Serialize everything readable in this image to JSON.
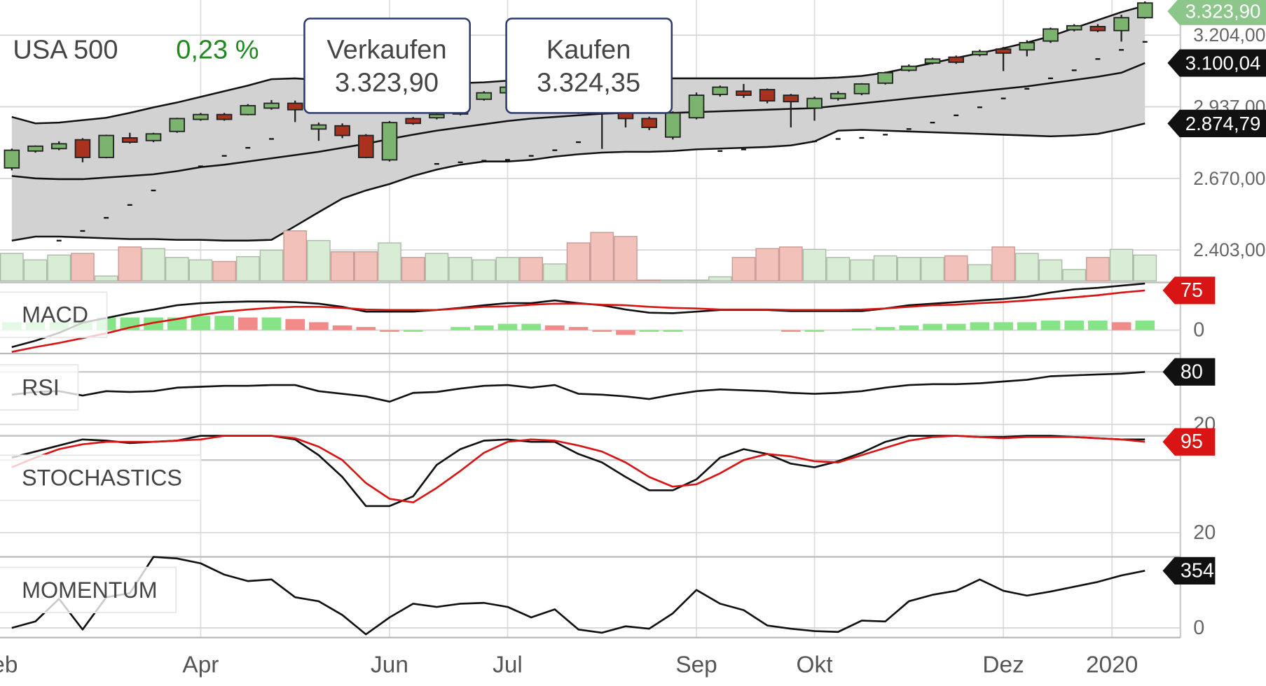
{
  "header": {
    "instrument": "USA 500",
    "change": "0,23 %",
    "sell_label": "Verkaufen",
    "sell_price": "3.323,90",
    "buy_label": "Kaufen",
    "buy_price": "3.324,35"
  },
  "chart_data": [
    {
      "type": "candlestick",
      "categories": [
        null,
        null,
        null,
        null,
        null,
        null,
        null,
        null,
        null,
        null,
        null,
        null,
        null,
        null,
        null,
        null,
        null,
        null,
        null,
        null,
        null,
        null,
        null,
        null,
        null,
        null,
        null,
        null,
        null,
        null,
        null,
        null,
        null,
        null,
        null,
        null,
        null,
        null,
        null,
        null,
        null,
        null,
        null,
        null,
        null,
        null,
        null,
        null,
        null
      ],
      "xlim": [
        -0.5,
        49.5
      ],
      "xticks": [
        {
          "value": -0.6,
          "label": "Feb"
        },
        {
          "value": 8,
          "label": "Apr"
        },
        {
          "value": 16,
          "label": "Jun"
        },
        {
          "value": 21,
          "label": "Jul"
        },
        {
          "value": 29,
          "label": "Sep"
        },
        {
          "value": 34,
          "label": "Okt"
        },
        {
          "value": 42,
          "label": "Dez"
        },
        {
          "value": 46.6,
          "label": "2020"
        }
      ],
      "ylim": [
        2282,
        3335
      ],
      "yticks": [
        {
          "value": 3204,
          "label": "3.204,00"
        },
        {
          "value": 2937,
          "label": "2.937,00"
        },
        {
          "value": 2670,
          "label": "2.670,00"
        },
        {
          "value": 2403,
          "label": "2.403,00"
        }
      ],
      "grid": true,
      "up_color": "#7cb46f",
      "down_color": "#a8321e",
      "open": [
        2709,
        2772,
        2781,
        2814,
        2748,
        2821,
        2811,
        2845,
        2890,
        2908,
        2908,
        2932,
        2950,
        2854,
        2866,
        2830,
        2739,
        2893,
        2896,
        2910,
        2965,
        2989,
        3015,
        3010,
        2990,
        2935,
        2914,
        2893,
        2824,
        2896,
        2983,
        2995,
        3001,
        2980,
        2932,
        2968,
        2986,
        3025,
        3073,
        3100,
        3122,
        3131,
        3152,
        3149,
        3182,
        3224,
        3236,
        3221,
        3269
      ],
      "high": [
        2781,
        2793,
        2808,
        2820,
        2833,
        2840,
        2840,
        2896,
        2914,
        2914,
        2947,
        2962,
        2960,
        2878,
        2875,
        2835,
        2884,
        2899,
        2914,
        2960,
        2995,
        3020,
        3025,
        3025,
        2995,
        2945,
        2920,
        2900,
        2920,
        2990,
        3016,
        3022,
        3005,
        2985,
        2975,
        2995,
        3025,
        3068,
        3095,
        3120,
        3128,
        3150,
        3160,
        3185,
        3232,
        3245,
        3245,
        3280,
        3330
      ],
      "low": [
        2700,
        2766,
        2775,
        2730,
        2745,
        2800,
        2805,
        2840,
        2885,
        2885,
        2905,
        2926,
        2880,
        2810,
        2820,
        2745,
        2733,
        2870,
        2890,
        2905,
        2960,
        2985,
        2995,
        2985,
        2910,
        2780,
        2860,
        2850,
        2815,
        2890,
        2975,
        2970,
        2950,
        2860,
        2885,
        2960,
        2980,
        3020,
        3068,
        3095,
        3097,
        3125,
        3070,
        3125,
        3175,
        3218,
        3215,
        3180,
        3265
      ],
      "close": [
        2775,
        2790,
        2799,
        2748,
        2830,
        2805,
        2836,
        2893,
        2908,
        2890,
        2941,
        2950,
        2926,
        2869,
        2830,
        2748,
        2878,
        2875,
        2908,
        2950,
        2989,
        3010,
        3010,
        3020,
        2920,
        2920,
        2893,
        2860,
        2914,
        2980,
        3010,
        2980,
        2959,
        2956,
        2968,
        2986,
        3022,
        3064,
        3088,
        3115,
        3103,
        3143,
        3137,
        3176,
        3227,
        3239,
        3221,
        3269,
        3323.9
      ],
      "bands": {
        "color": "#111111",
        "fill": "#d2d2d2",
        "upper": [
          2899,
          2875,
          2878,
          2887,
          2896,
          2914,
          2935,
          2953,
          2974,
          2995,
          3016,
          3040,
          3043,
          3037,
          3034,
          3031,
          3028,
          3025,
          3025,
          3025,
          3028,
          3034,
          3034,
          3040,
          3043,
          3046,
          3046,
          3043,
          3043,
          3043,
          3043,
          3043,
          3043,
          3043,
          3043,
          3046,
          3052,
          3064,
          3082,
          3100,
          3119,
          3137,
          3155,
          3176,
          3200,
          3230,
          3260,
          3290,
          3314
        ],
        "middle": [
          2679,
          2670,
          2667,
          2667,
          2673,
          2679,
          2685,
          2697,
          2712,
          2721,
          2733,
          2745,
          2757,
          2769,
          2784,
          2799,
          2817,
          2833,
          2848,
          2860,
          2872,
          2884,
          2893,
          2899,
          2905,
          2911,
          2914,
          2914,
          2914,
          2917,
          2920,
          2923,
          2926,
          2929,
          2932,
          2941,
          2950,
          2959,
          2968,
          2977,
          2986,
          2995,
          3004,
          3013,
          3025,
          3037,
          3049,
          3064,
          3100.04
        ],
        "lower": [
          2438,
          2453,
          2453,
          2450,
          2447,
          2444,
          2444,
          2441,
          2441,
          2438,
          2438,
          2441,
          2492,
          2544,
          2595,
          2625,
          2649,
          2679,
          2703,
          2721,
          2733,
          2733,
          2739,
          2751,
          2760,
          2766,
          2769,
          2769,
          2772,
          2778,
          2781,
          2784,
          2787,
          2793,
          2808,
          2848,
          2851,
          2848,
          2845,
          2842,
          2839,
          2836,
          2833,
          2830,
          2827,
          2830,
          2836,
          2854,
          2874.79
        ]
      },
      "sar": {
        "color": "#111111",
        "values": [
          null,
          null,
          2438,
          2474,
          2523,
          2571,
          2625,
          null,
          2715,
          2754,
          2784,
          2817,
          null,
          null,
          null,
          null,
          null,
          null,
          2724,
          2730,
          2736,
          2739,
          2754,
          2775,
          2805,
          null,
          null,
          null,
          null,
          null,
          2772,
          2778,
          null,
          null,
          2808,
          2817,
          2821,
          2833,
          2854,
          2878,
          2905,
          2935,
          2968,
          3004,
          3043,
          3073,
          3115,
          3149,
          3179
        ]
      },
      "volume": {
        "ylim": [
          0,
          130
        ],
        "up_color": "#d9ecd6",
        "down_color": "#f2c1ba",
        "values": [
          34,
          26,
          32,
          34,
          6,
          42,
          40,
          29,
          26,
          24,
          30,
          38,
          62,
          50,
          36,
          36,
          47,
          29,
          34,
          29,
          26,
          29,
          29,
          21,
          47,
          60,
          55,
          1,
          1,
          1,
          5,
          29,
          40,
          42,
          39,
          29,
          26,
          31,
          29,
          29,
          31,
          20,
          42,
          34,
          26,
          14,
          29,
          39,
          32
        ]
      },
      "badges": [
        {
          "value": 3323.9,
          "label": "3.323,90",
          "color": "#8cc68a"
        },
        {
          "value": 3100.04,
          "label": "3.100,04",
          "color": "#111111"
        },
        {
          "value": 2874.79,
          "label": "2.874,79",
          "color": "#111111"
        }
      ]
    },
    {
      "type": "line",
      "title": "MACD",
      "ylim": [
        -44,
        90
      ],
      "yticks": [
        0
      ],
      "series": [
        {
          "color": "#111111",
          "values": [
            -32,
            -20,
            -5,
            14,
            23,
            32,
            39,
            47,
            51,
            53,
            54,
            54,
            53,
            50,
            44,
            35,
            35,
            35,
            38,
            42,
            47,
            51,
            51,
            56,
            51,
            47,
            39,
            33,
            32,
            35,
            38,
            38,
            38,
            36,
            36,
            36,
            36,
            41,
            47,
            50,
            53,
            56,
            59,
            63,
            71,
            77,
            80,
            84,
            88
          ]
        },
        {
          "color": "#d81414",
          "badge": true,
          "values": [
            -41,
            -32,
            -24,
            -15,
            -6,
            5,
            14,
            21,
            29,
            35,
            39,
            42,
            44,
            44,
            42,
            39,
            38,
            38,
            38,
            41,
            44,
            45,
            48,
            50,
            50,
            48,
            47,
            44,
            42,
            41,
            39,
            39,
            39,
            38,
            38,
            38,
            39,
            41,
            44,
            47,
            48,
            51,
            53,
            56,
            59,
            62,
            66,
            71,
            75
          ]
        }
      ],
      "histogram": {
        "up_color": "#86e486",
        "down_color": "#f28a8a",
        "values": [
          15,
          15,
          15,
          15,
          24,
          24,
          24,
          24,
          27,
          27,
          24,
          24,
          21,
          15,
          9,
          6,
          -3,
          -3,
          0,
          6,
          9,
          12,
          12,
          9,
          6,
          -3,
          -9,
          -3,
          -3,
          0,
          0,
          0,
          0,
          -3,
          -3,
          0,
          3,
          6,
          9,
          12,
          12,
          15,
          15,
          15,
          18,
          18,
          18,
          15,
          18
        ]
      }
    },
    {
      "type": "line",
      "title": "RSI",
      "ylim": [
        7,
        101
      ],
      "yticks": [
        20
      ],
      "hlines": [
        80
      ],
      "series": [
        {
          "color": "#111111",
          "badge": true,
          "values": [
            54,
            57,
            58,
            53,
            58,
            57,
            58,
            62,
            63,
            64,
            64,
            65,
            65,
            58,
            55,
            52,
            46,
            56,
            57,
            61,
            64,
            65,
            62,
            65,
            55,
            54,
            52,
            49,
            54,
            58,
            60,
            59,
            58,
            56,
            55,
            56,
            58,
            62,
            65,
            66,
            66,
            67,
            69,
            71,
            75,
            76,
            77,
            78,
            80
          ]
        }
      ]
    },
    {
      "type": "line",
      "title": "STOCHASTICS",
      "ylim": [
        0,
        100
      ],
      "yticks": [
        20
      ],
      "hlines": [
        80,
        100
      ],
      "series": [
        {
          "color": "#111111",
          "values": [
            82,
            87,
            92,
            97,
            96,
            94,
            95,
            96,
            100,
            100,
            100,
            100,
            97,
            84,
            66,
            42,
            42,
            50,
            76,
            89,
            96,
            97,
            95,
            95,
            85,
            78,
            66,
            55,
            55,
            64,
            82,
            89,
            85,
            77,
            74,
            79,
            86,
            95,
            100,
            100,
            100,
            99,
            99,
            100,
            100,
            99,
            98,
            97,
            97
          ]
        },
        {
          "color": "#d81414",
          "badge": true,
          "values": [
            74,
            82,
            89,
            93,
            95,
            95,
            95,
            96,
            97,
            100,
            100,
            100,
            98,
            91,
            80,
            61,
            48,
            45,
            57,
            71,
            86,
            95,
            97,
            96,
            92,
            87,
            78,
            66,
            58,
            60,
            69,
            80,
            85,
            83,
            79,
            78,
            84,
            90,
            96,
            99,
            100,
            99,
            98,
            99,
            99,
            99,
            98,
            97,
            95
          ]
        }
      ]
    },
    {
      "type": "line",
      "title": "MOMENTUM",
      "ylim": [
        -60,
        440
      ],
      "yticks": [
        0
      ],
      "series": [
        {
          "color": "#111111",
          "badge": true,
          "values": [
            0,
            40,
            180,
            -10,
            190,
            215,
            440,
            430,
            400,
            330,
            290,
            300,
            190,
            165,
            80,
            -40,
            65,
            150,
            130,
            150,
            155,
            130,
            65,
            115,
            -10,
            -30,
            10,
            -5,
            90,
            235,
            150,
            110,
            15,
            -5,
            -20,
            -25,
            45,
            40,
            165,
            205,
            230,
            300,
            230,
            200,
            225,
            255,
            285,
            325,
            354
          ]
        }
      ]
    }
  ]
}
